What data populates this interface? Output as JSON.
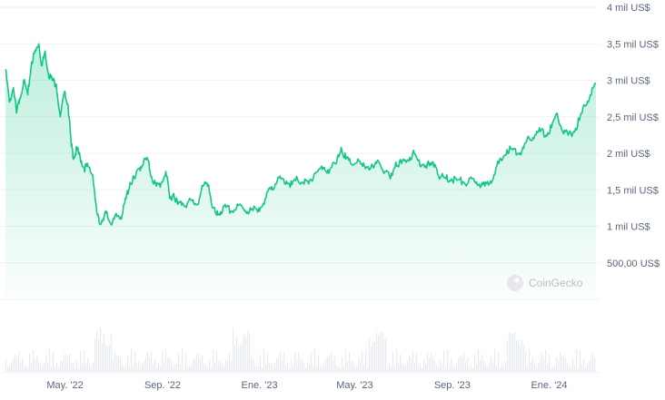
{
  "chart_data": {
    "type": "area",
    "title": "",
    "xlabel": "",
    "ylabel": "",
    "ylim": [
      0,
      4000
    ],
    "y_ticks": [
      {
        "value": 500,
        "label": "500,00 US$"
      },
      {
        "value": 1000,
        "label": "1 mil US$"
      },
      {
        "value": 1500,
        "label": "1,5 mil US$"
      },
      {
        "value": 2000,
        "label": "2 mil US$"
      },
      {
        "value": 2500,
        "label": "2,5 mil US$"
      },
      {
        "value": 3000,
        "label": "3 mil US$"
      },
      {
        "value": 3500,
        "label": "3,5 mil US$"
      },
      {
        "value": 4000,
        "label": "4 mil US$"
      }
    ],
    "x_range": [
      "2022-02-15",
      "2024-02-29"
    ],
    "x_ticks": [
      {
        "date": "2022-05-01",
        "label": "May. '22"
      },
      {
        "date": "2022-09-01",
        "label": "Sep. '22"
      },
      {
        "date": "2023-01-01",
        "label": "Ene. '23"
      },
      {
        "date": "2023-05-01",
        "label": "May. '23"
      },
      {
        "date": "2023-09-01",
        "label": "Sep. '23"
      },
      {
        "date": "2024-01-01",
        "label": "Ene. '24"
      }
    ],
    "grid": true,
    "line_color": "#16c784",
    "series": [
      {
        "x": [
          "2022-02-15",
          "2022-02-20",
          "2022-02-25",
          "2022-03-01",
          "2022-03-05",
          "2022-03-10",
          "2022-03-15",
          "2022-03-20",
          "2022-03-25",
          "2022-03-29",
          "2022-04-02",
          "2022-04-06",
          "2022-04-10",
          "2022-04-15",
          "2022-04-20",
          "2022-04-25",
          "2022-05-01",
          "2022-05-05",
          "2022-05-09",
          "2022-05-12",
          "2022-05-16",
          "2022-05-20",
          "2022-05-25",
          "2022-05-30",
          "2022-06-05",
          "2022-06-10",
          "2022-06-13",
          "2022-06-18",
          "2022-06-22",
          "2022-06-27",
          "2022-07-02",
          "2022-07-07",
          "2022-07-12",
          "2022-07-17",
          "2022-07-22",
          "2022-07-28",
          "2022-08-03",
          "2022-08-08",
          "2022-08-13",
          "2022-08-18",
          "2022-08-24",
          "2022-08-30",
          "2022-09-05",
          "2022-09-10",
          "2022-09-15",
          "2022-09-20",
          "2022-09-26",
          "2022-10-02",
          "2022-10-08",
          "2022-10-15",
          "2022-10-22",
          "2022-10-29",
          "2022-11-03",
          "2022-11-08",
          "2022-11-13",
          "2022-11-20",
          "2022-11-27",
          "2022-12-03",
          "2022-12-10",
          "2022-12-17",
          "2022-12-24",
          "2022-12-31",
          "2023-01-07",
          "2023-01-14",
          "2023-01-21",
          "2023-01-28",
          "2023-02-04",
          "2023-02-11",
          "2023-02-18",
          "2023-02-25",
          "2023-03-04",
          "2023-03-11",
          "2023-03-18",
          "2023-03-25",
          "2023-04-01",
          "2023-04-08",
          "2023-04-14",
          "2023-04-20",
          "2023-04-27",
          "2023-05-04",
          "2023-05-11",
          "2023-05-18",
          "2023-05-25",
          "2023-06-01",
          "2023-06-08",
          "2023-06-15",
          "2023-06-22",
          "2023-06-29",
          "2023-07-06",
          "2023-07-13",
          "2023-07-20",
          "2023-07-27",
          "2023-08-03",
          "2023-08-10",
          "2023-08-17",
          "2023-08-24",
          "2023-08-31",
          "2023-09-07",
          "2023-09-14",
          "2023-09-21",
          "2023-09-28",
          "2023-10-05",
          "2023-10-12",
          "2023-10-19",
          "2023-10-26",
          "2023-11-02",
          "2023-11-09",
          "2023-11-16",
          "2023-11-23",
          "2023-11-30",
          "2023-12-07",
          "2023-12-14",
          "2023-12-21",
          "2023-12-28",
          "2024-01-04",
          "2024-01-11",
          "2024-01-18",
          "2024-01-25",
          "2024-02-01",
          "2024-02-08",
          "2024-02-15",
          "2024-02-22",
          "2024-02-29"
        ],
        "y": [
          3150,
          2700,
          2900,
          2550,
          2750,
          3000,
          2800,
          3250,
          3400,
          3500,
          3200,
          3400,
          3100,
          3000,
          2950,
          2500,
          2850,
          2650,
          2100,
          1950,
          2050,
          1950,
          1800,
          1820,
          1700,
          1200,
          1050,
          1100,
          1180,
          1050,
          1100,
          1150,
          1150,
          1380,
          1600,
          1650,
          1800,
          1880,
          1920,
          1680,
          1550,
          1580,
          1750,
          1380,
          1450,
          1300,
          1320,
          1310,
          1350,
          1300,
          1550,
          1570,
          1250,
          1150,
          1200,
          1260,
          1200,
          1250,
          1280,
          1200,
          1220,
          1250,
          1300,
          1530,
          1580,
          1650,
          1620,
          1570,
          1650,
          1600,
          1580,
          1720,
          1790,
          1760,
          1800,
          1860,
          2080,
          1920,
          1850,
          1880,
          1820,
          1820,
          1800,
          1870,
          1750,
          1650,
          1880,
          1860,
          1900,
          2000,
          1900,
          1850,
          1830,
          1850,
          1670,
          1650,
          1650,
          1630,
          1610,
          1590,
          1650,
          1580,
          1550,
          1620,
          1800,
          1900,
          2050,
          2050,
          2000,
          2070,
          2200,
          2250,
          2300,
          2250,
          2350,
          2550,
          2300,
          2250,
          2300,
          2450,
          2650,
          2800,
          2950
        ]
      }
    ],
    "volume_note": "",
    "watermark": "CoinGecko"
  }
}
